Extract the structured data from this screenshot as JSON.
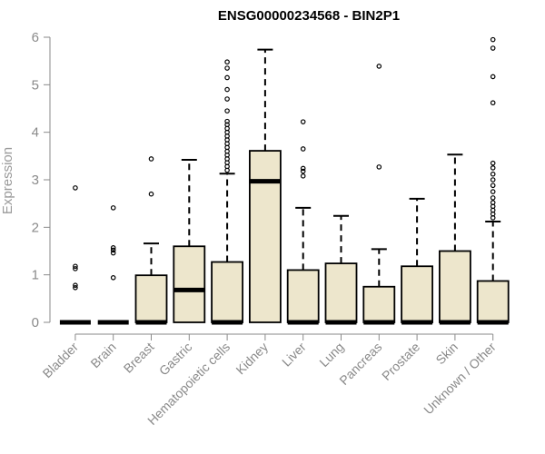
{
  "chart_data": {
    "type": "box",
    "title": "ENSG00000234568 - BIN2P1",
    "ylabel": "Expression",
    "xlabel": "",
    "ylim": [
      0,
      6
    ],
    "yticks": [
      "0",
      "1",
      "2",
      "3",
      "4",
      "5",
      "6"
    ],
    "box_fill": "#ede6cc",
    "categories": [
      "Bladder",
      "Brain",
      "Breast",
      "Gastric",
      "Hematopoietic cells",
      "Kidney",
      "Liver",
      "Lung",
      "Pancreas",
      "Prostate",
      "Skin",
      "Unknown / Other"
    ],
    "boxes": [
      {
        "q1": 0,
        "median": 0,
        "q3": 0,
        "whisker_low": 0,
        "whisker_high": 0,
        "outliers": [
          0.73,
          0.78,
          1.13,
          1.18,
          2.83
        ]
      },
      {
        "q1": 0,
        "median": 0,
        "q3": 0,
        "whisker_low": 0,
        "whisker_high": 0,
        "outliers": [
          0.94,
          1.46,
          1.52,
          1.57,
          2.41
        ]
      },
      {
        "q1": 0,
        "median": 0,
        "q3": 0.99,
        "whisker_low": 0,
        "whisker_high": 1.66,
        "outliers": [
          2.7,
          3.44
        ]
      },
      {
        "q1": 0,
        "median": 0.68,
        "q3": 1.6,
        "whisker_low": 0,
        "whisker_high": 3.42,
        "outliers": []
      },
      {
        "q1": 0,
        "median": 0,
        "q3": 1.27,
        "whisker_low": 0,
        "whisker_high": 3.13,
        "outliers": [
          3.2,
          3.28,
          3.36,
          3.44,
          3.52,
          3.6,
          3.68,
          3.76,
          3.84,
          3.92,
          4.0,
          4.08,
          4.16,
          4.23,
          4.45,
          4.7,
          4.9,
          5.15,
          5.35,
          5.48
        ]
      },
      {
        "q1": 0,
        "median": 2.97,
        "q3": 3.61,
        "whisker_low": 0,
        "whisker_high": 5.74,
        "outliers": []
      },
      {
        "q1": 0,
        "median": 0,
        "q3": 1.1,
        "whisker_low": 0,
        "whisker_high": 2.41,
        "outliers": [
          3.08,
          3.18,
          3.24,
          3.65,
          4.22
        ]
      },
      {
        "q1": 0,
        "median": 0,
        "q3": 1.24,
        "whisker_low": 0,
        "whisker_high": 2.24,
        "outliers": []
      },
      {
        "q1": 0,
        "median": 0,
        "q3": 0.75,
        "whisker_low": 0,
        "whisker_high": 1.54,
        "outliers": [
          3.27,
          5.39
        ]
      },
      {
        "q1": 0,
        "median": 0,
        "q3": 1.18,
        "whisker_low": 0,
        "whisker_high": 2.6,
        "outliers": []
      },
      {
        "q1": 0,
        "median": 0,
        "q3": 1.5,
        "whisker_low": 0,
        "whisker_high": 3.53,
        "outliers": []
      },
      {
        "q1": 0,
        "median": 0,
        "q3": 0.87,
        "whisker_low": 0,
        "whisker_high": 2.12,
        "outliers": [
          2.2,
          2.28,
          2.36,
          2.44,
          2.52,
          2.62,
          2.75,
          2.88,
          3.0,
          3.12,
          3.25,
          3.35,
          4.62,
          5.17,
          5.77,
          5.95
        ]
      }
    ]
  }
}
